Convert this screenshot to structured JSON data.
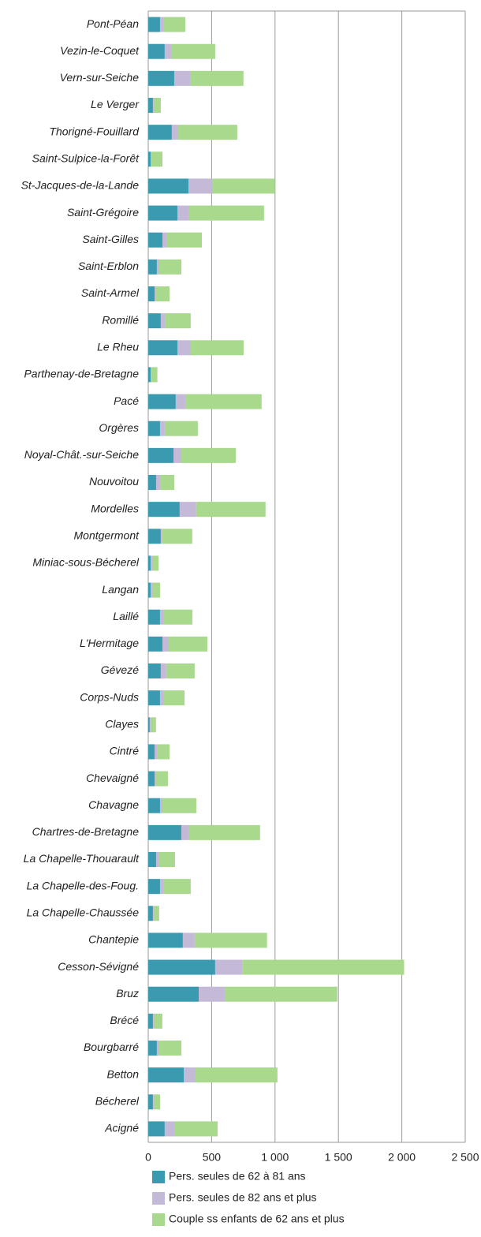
{
  "chart_data": {
    "type": "stacked-barh",
    "categories": [
      "Pont-Péan",
      "Vezin-le-Coquet",
      "Vern-sur-Seiche",
      "Le Verger",
      "Thorigné-Fouillard",
      "Saint-Sulpice-la-Forêt",
      "St-Jacques-de-la-Lande",
      "Saint-Grégoire",
      "Saint-Gilles",
      "Saint-Erblon",
      "Saint-Armel",
      "Romillé",
      "Le Rheu",
      "Parthenay-de-Bretagne",
      "Pacé",
      "Orgères",
      "Noyal-Chât.-sur-Seiche",
      "Nouvoitou",
      "Mordelles",
      "Montgermont",
      "Miniac-sous-Bécherel",
      "Langan",
      "Laillé",
      "L'Hermitage",
      "Gévezé",
      "Corps-Nuds",
      "Clayes",
      "Cintré",
      "Chevaigné",
      "Chavagne",
      "Chartres-de-Bretagne",
      "La Chapelle-Thouarault",
      "La Chapelle-des-Foug.",
      "La Chapelle-Chaussée",
      "Chantepie",
      "Cesson-Sévigné",
      "Bruz",
      "Brécé",
      "Bourgbarré",
      "Betton",
      "Bécherel",
      "Acigné"
    ],
    "series": [
      {
        "name": "Pers. seules de 62 à 81 ans",
        "color": "#3a9aaf",
        "values": [
          93,
          130,
          205,
          37,
          186,
          19,
          317,
          230,
          112,
          68,
          50,
          99,
          230,
          19,
          217,
          93,
          199,
          62,
          248,
          99,
          19,
          19,
          93,
          112,
          99,
          93,
          12,
          50,
          50,
          93,
          261,
          62,
          93,
          37,
          273,
          528,
          398,
          37,
          68,
          280,
          37,
          130
        ]
      },
      {
        "name": "Pers. seules de 82 ans et plus",
        "color": "#c5b9d8",
        "values": [
          31,
          56,
          130,
          6,
          44,
          6,
          186,
          93,
          31,
          19,
          12,
          37,
          106,
          3,
          75,
          37,
          62,
          31,
          130,
          12,
          12,
          12,
          25,
          50,
          43,
          25,
          6,
          19,
          12,
          19,
          62,
          19,
          31,
          6,
          93,
          217,
          205,
          6,
          19,
          87,
          6,
          75
        ]
      },
      {
        "name": "Couple ss enfants de 62 ans et plus",
        "color": "#a8d98c",
        "values": [
          168,
          342,
          416,
          56,
          472,
          87,
          497,
          590,
          280,
          174,
          106,
          199,
          416,
          50,
          602,
          261,
          429,
          112,
          547,
          236,
          50,
          62,
          230,
          304,
          224,
          168,
          43,
          99,
          93,
          267,
          559,
          130,
          211,
          43,
          571,
          1273,
          888,
          68,
          174,
          652,
          50,
          342
        ]
      }
    ],
    "xlim": [
      0,
      2500
    ],
    "xticks": [
      0,
      500,
      {
        "value": 1000,
        "label": "1 000"
      },
      {
        "value": 1500,
        "label": "1 500"
      },
      {
        "value": 2000,
        "label": "2 000"
      },
      {
        "value": 2500,
        "label": "2 500"
      }
    ],
    "grid": true,
    "legend": "bottom"
  }
}
